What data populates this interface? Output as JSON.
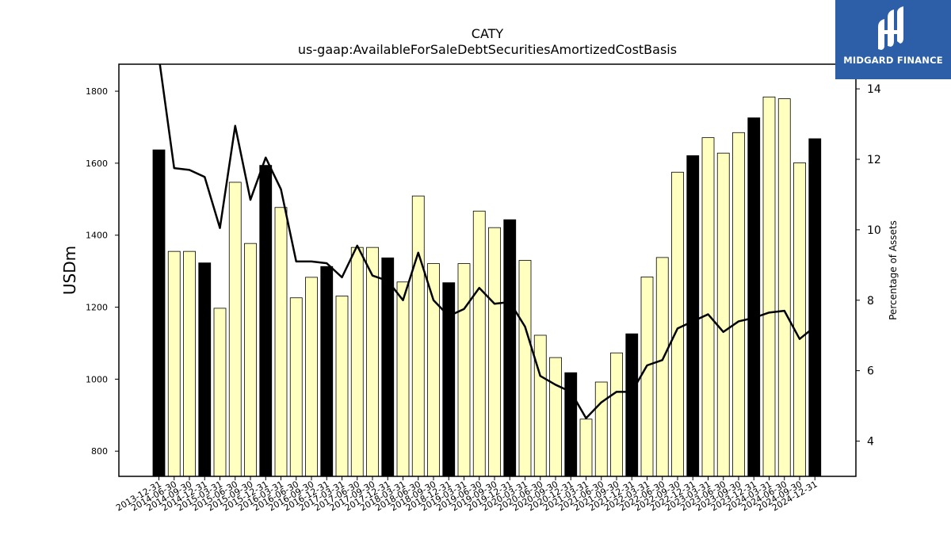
{
  "chart_data": {
    "type": "bar",
    "title": "CATY",
    "subtitle": "us-gaap:AvailableForSaleDebtSecuritiesAmortizedCostBasis",
    "ylabel": "USDm",
    "ylabel_right": "Percentage of Assets",
    "ylim": [
      730,
      1875
    ],
    "ylim_right": [
      3.0,
      14.7
    ],
    "yticks": [
      800,
      1000,
      1200,
      1400,
      1600,
      1800
    ],
    "yticks_right": [
      4,
      6,
      8,
      10,
      12,
      14
    ],
    "categories": [
      "2013-12-31",
      "2014-06-30",
      "2014-09-30",
      "2014-12-31",
      "2015-03-31",
      "2015-06-30",
      "2015-09-30",
      "2015-12-31",
      "2016-03-31",
      "2016-06-30",
      "2016-09-30",
      "2016-12-31",
      "2017-03-31",
      "2017-06-30",
      "2017-09-30",
      "2017-12-31",
      "2018-03-31",
      "2018-06-30",
      "2018-09-30",
      "2018-12-31",
      "2019-03-31",
      "2019-06-30",
      "2019-09-30",
      "2019-12-31",
      "2020-03-31",
      "2020-06-30",
      "2020-09-30",
      "2020-12-31",
      "2021-03-31",
      "2021-06-30",
      "2021-09-30",
      "2021-12-31",
      "2022-03-31",
      "2022-06-30",
      "2022-09-30",
      "2022-12-31",
      "2023-03-31",
      "2023-06-30",
      "2023-09-30",
      "2023-12-31",
      "2024-03-31",
      "2024-06-30",
      "2024-09-30",
      "2024-12-31"
    ],
    "series": [
      {
        "kind": "bar",
        "values": [
          1637,
          1355,
          1355,
          1323,
          1197,
          1547,
          1377,
          1594,
          1477,
          1226,
          1283,
          1313,
          1231,
          1366,
          1366,
          1337,
          1270,
          1509,
          1321,
          1268,
          1321,
          1467,
          1421,
          1443,
          1330,
          1122,
          1060,
          1018,
          889,
          992,
          1073,
          1126,
          1284,
          1338,
          1575,
          1621,
          1671,
          1628,
          1685,
          1726,
          1784,
          1779,
          1601,
          1668
        ],
        "year_end_color": "#000000",
        "quarter_color": "#ffffbf"
      },
      {
        "kind": "line",
        "axis": "right",
        "values": [
          14.9,
          11.75,
          11.7,
          11.5,
          10.05,
          12.95,
          10.85,
          12.05,
          11.15,
          9.1,
          9.1,
          9.05,
          8.65,
          9.55,
          8.7,
          8.55,
          8.0,
          9.35,
          8.0,
          7.55,
          7.75,
          8.35,
          7.9,
          7.95,
          7.25,
          5.85,
          5.6,
          5.4,
          4.65,
          5.1,
          5.4,
          5.4,
          6.15,
          6.3,
          7.2,
          7.4,
          7.6,
          7.1,
          7.4,
          7.5,
          7.65,
          7.7,
          6.9,
          7.25
        ],
        "color": "#000000"
      }
    ],
    "grid": false
  },
  "logo": {
    "text": "MIDGARD FINANCE",
    "background": "#2c5fa8"
  }
}
